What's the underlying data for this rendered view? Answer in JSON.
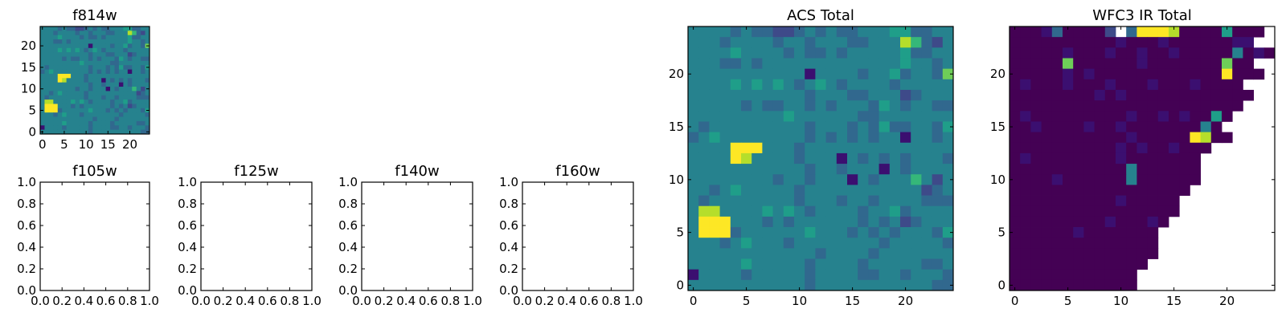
{
  "chart_data": [
    {
      "type": "heatmap",
      "title": "f814w",
      "xlabel": "",
      "ylabel": "",
      "xlim": [
        -0.5,
        24.5
      ],
      "ylim": [
        -0.5,
        24.5
      ],
      "xticks": [
        0,
        5,
        10,
        15,
        20
      ],
      "yticks": [
        0,
        5,
        10,
        15,
        20
      ],
      "colormap": "viridis",
      "source": "ACS Total",
      "empty": false
    },
    {
      "type": "heatmap",
      "title": "f105w",
      "xlim": [
        0,
        1
      ],
      "ylim": [
        0,
        1
      ],
      "xticks": [
        0.0,
        0.2,
        0.4,
        0.6,
        0.8,
        1.0
      ],
      "yticks": [
        0.0,
        0.2,
        0.4,
        0.6,
        0.8,
        1.0
      ],
      "empty": true
    },
    {
      "type": "heatmap",
      "title": "f125w",
      "xlim": [
        0,
        1
      ],
      "ylim": [
        0,
        1
      ],
      "xticks": [
        0.0,
        0.2,
        0.4,
        0.6,
        0.8,
        1.0
      ],
      "yticks": [
        0.0,
        0.2,
        0.4,
        0.6,
        0.8,
        1.0
      ],
      "empty": true
    },
    {
      "type": "heatmap",
      "title": "f140w",
      "xlim": [
        0,
        1
      ],
      "ylim": [
        0,
        1
      ],
      "xticks": [
        0.0,
        0.2,
        0.4,
        0.6,
        0.8,
        1.0
      ],
      "yticks": [
        0.0,
        0.2,
        0.4,
        0.6,
        0.8,
        1.0
      ],
      "empty": true
    },
    {
      "type": "heatmap",
      "title": "f160w",
      "xlim": [
        0,
        1
      ],
      "ylim": [
        0,
        1
      ],
      "xticks": [
        0.0,
        0.2,
        0.4,
        0.6,
        0.8,
        1.0
      ],
      "yticks": [
        0.0,
        0.2,
        0.4,
        0.6,
        0.8,
        1.0
      ],
      "empty": true
    },
    {
      "type": "heatmap",
      "title": "ACS Total",
      "xlabel": "",
      "ylabel": "",
      "xlim": [
        -0.5,
        24.5
      ],
      "ylim": [
        -0.5,
        24.5
      ],
      "xticks": [
        0,
        5,
        10,
        15,
        20
      ],
      "yticks": [
        0,
        5,
        10,
        15,
        20
      ],
      "colormap": "viridis",
      "empty": false,
      "grid_rows_top_to_bottom": [
        "4444343322343433444553344",
        "4443444434434443344486324",
        "4444544443433434444453344",
        "4443343444444444444454434",
        "4444444444414444344534437",
        "4444545454345434444344444",
        "4444444444434443344423444",
        "4444434334434344435434433",
        "4444444445444444334444444",
        "4344444444434443435334435",
        "3454444444434343434414434",
        "4444999444344444444444444",
        "4444984444344414343434443",
        "4444444444434434441434444",
        "4444444434434441434446424",
        "4434544444344444444444234",
        "4344444444344434434444333",
        "4884444545434444344534444",
        "4999444343444444343423444",
        "4999344444454443434344435",
        "4443454443444444443444443",
        "4444444444443444434444444",
        "4444454444434444344444334",
        "1444434444434444334434443",
        "4444444444434444444444433"
      ]
    },
    {
      "type": "heatmap",
      "title": "WFC3 IR Total",
      "xlabel": "",
      "ylabel": "",
      "xlim": [
        -0.5,
        24.5
      ],
      "ylim": [
        -0.5,
        24.5
      ],
      "xticks": [
        0,
        5,
        10,
        15,
        20
      ],
      "yticks": [
        0,
        5,
        10,
        15,
        20
      ],
      "colormap": "viridis",
      "empty": false,
      "grid_rows_top_to_bottom": [
        "0001300002.3999800005000.",
        "00000000001000100000011..",
        "0000010001001001000004010",
        "00000700000010000000700..",
        "000001010000000000009000.",
        "0100010001000100010000...",
        "00000000101000000000000..",
        "0000000000000000000000...",
        "010000000001001010050....",
        "00100001001000000040.....",
        "000000000001000009800....",
        "0000000000101001000......",
        "010000000010000000.......",
        "000000000004000000.......",
        "000010000004000000.......",
        "00000000000000000........",
        "0000000000100000.........",
        "0000000000000000.........",
        "000000000100010..........",
        "00000010000000...........",
        "00000000000000...........",
        "00000000000000...........",
        "0000000000000............",
        "000000000000.............",
        "000000000000............."
      ]
    }
  ]
}
